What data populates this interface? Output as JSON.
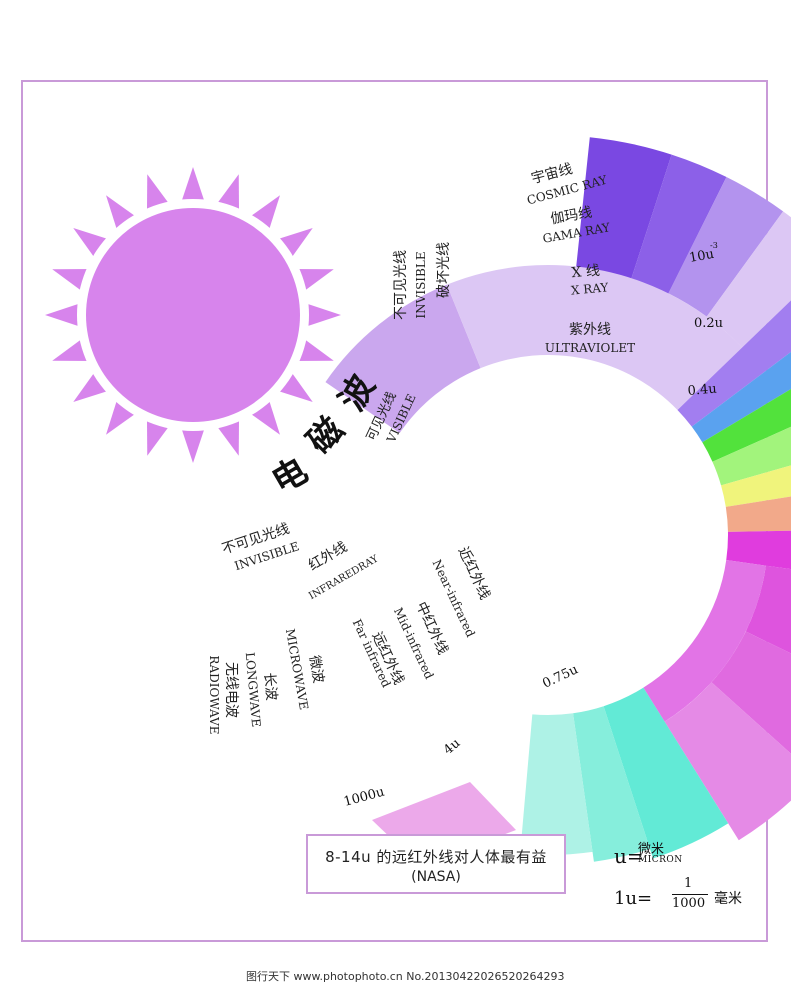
{
  "title": "电磁波",
  "diagram": {
    "invisible_short": {
      "cn": "不可见光线",
      "en": "INVISIBLE",
      "sub": "破坏光线"
    },
    "cosmic": {
      "cn": "宇宙线",
      "en": "COSMIC RAY"
    },
    "gama": {
      "cn": "伽玛线",
      "en": "GAMA RAY"
    },
    "xray": {
      "cn": "X 线",
      "en": "X RAY"
    },
    "uv": {
      "cn": "紫外线",
      "en": "ULTRAVIOLET"
    },
    "visible": {
      "cn": "可见光线",
      "en": "VISIBLE"
    },
    "invisible_long": {
      "cn": "不可见光线",
      "en": "INVISIBLE"
    },
    "infrared": {
      "cn": "红外线",
      "en": "INFRAREDRAY"
    },
    "near_ir": {
      "cn": "近红外线",
      "en": "Near-infrared"
    },
    "mid_ir": {
      "cn": "中红外线",
      "en": "Mid-infrared"
    },
    "far_ir": {
      "cn": "远红外线",
      "en": "Far infrared"
    },
    "microwave": {
      "cn": "微波",
      "en": "MICROWAVE"
    },
    "longwave": {
      "cn": "长波",
      "en": "LONGWAVE"
    },
    "radio": {
      "cn": "无线电波",
      "en": "RADIOWAVE"
    },
    "ticks": [
      "10u",
      "-3",
      "0.2u",
      "0.4u",
      "0.75u",
      "4u",
      "1000u"
    ]
  },
  "note": {
    "line1": "8-14u 的远红外线对人体最有益",
    "line2": "(NASA)"
  },
  "unit": {
    "u": "u=",
    "micron_cn": "微米",
    "micron_en": "MICRON",
    "one_u": "1u=",
    "num": "1",
    "den": "1000",
    "mm": "毫米"
  },
  "footer": "图行天下 www.photophoto.cn No.20130422026520264293",
  "colors": {
    "frame": "#c99ad8",
    "sun": "#d784ec",
    "cosmic": "#7a48e2",
    "gama": "#8c60e8",
    "xray": "#b393ee",
    "uv": "#dcc7f4",
    "violet": "#a27ef0",
    "blue": "#5aa2ef",
    "green": "#52e23c",
    "lightgreen": "#a2f47c",
    "yellow": "#f0f47c",
    "orange": "#f2a98a",
    "magenta": "#e03cde",
    "nearir": "#de54de",
    "midir": "#e06ae0",
    "farir": "#e58ae6",
    "microwave": "#62ead6",
    "longwave": "#86eedc",
    "radio": "#aef2e6"
  }
}
